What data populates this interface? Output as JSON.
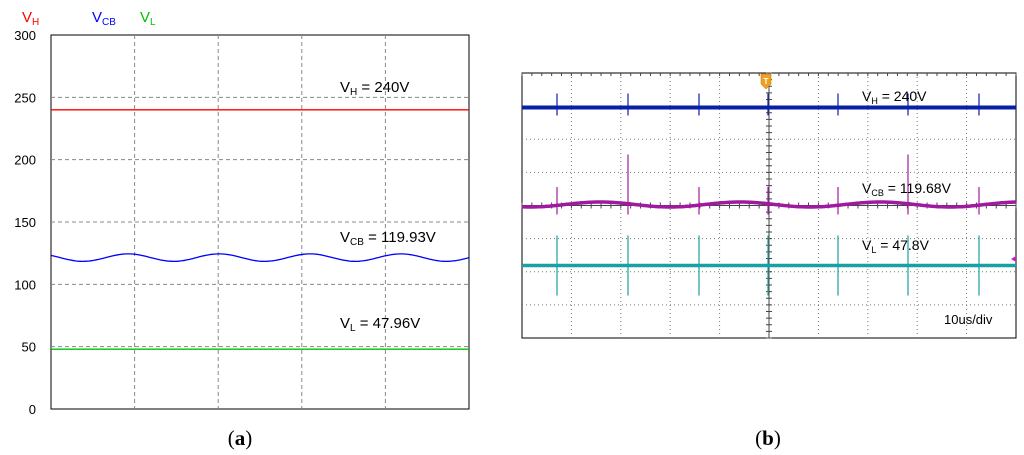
{
  "panel_a": {
    "caption_open": "(",
    "caption_letter": "a",
    "caption_close": ")",
    "legend": [
      {
        "main": "V",
        "sub": "H",
        "color": "#ff0000"
      },
      {
        "main": "V",
        "sub": "CB",
        "color": "#0000ff"
      },
      {
        "main": "V",
        "sub": "L",
        "color": "#00c000"
      }
    ],
    "annotations": [
      {
        "main": "V",
        "sub": "H",
        "rest": " = 240V"
      },
      {
        "main": "V",
        "sub": "CB",
        "rest": " = 119.93V"
      },
      {
        "main": "V",
        "sub": "L",
        "rest": " = 47.96V"
      }
    ]
  },
  "panel_b": {
    "caption_open": "(",
    "caption_letter": "b",
    "caption_close": ")",
    "time_scale": "10us/div",
    "trigger_marker": "T",
    "annotations": [
      {
        "main": "V",
        "sub": "H",
        "rest": " = 240V"
      },
      {
        "main": "V",
        "sub": "CB",
        "rest": " = 119.68V"
      },
      {
        "main": "V",
        "sub": "L",
        "rest": " = 47.8V"
      }
    ]
  },
  "chart_data": [
    {
      "type": "line",
      "title": "",
      "xlabel": "",
      "ylabel": "",
      "ylim": [
        0,
        300
      ],
      "yticks": [
        0,
        50,
        100,
        150,
        200,
        250,
        300
      ],
      "grid": "dashed vertical and horizontal",
      "series": [
        {
          "name": "V_H",
          "color": "#ff0000",
          "value": 240
        },
        {
          "name": "V_CB",
          "color": "#0000ff",
          "value": 119.93,
          "ripple": 3
        },
        {
          "name": "V_L",
          "color": "#00c000",
          "value": 47.96
        }
      ]
    },
    {
      "type": "line",
      "title": "",
      "time_per_div": "10us/div",
      "series": [
        {
          "name": "V_H",
          "color": "#0a1fa8",
          "value": 240
        },
        {
          "name": "V_CB",
          "color": "#a01aa0",
          "value": 119.68
        },
        {
          "name": "V_L",
          "color": "#1aa0a0",
          "value": 47.8
        }
      ]
    }
  ]
}
